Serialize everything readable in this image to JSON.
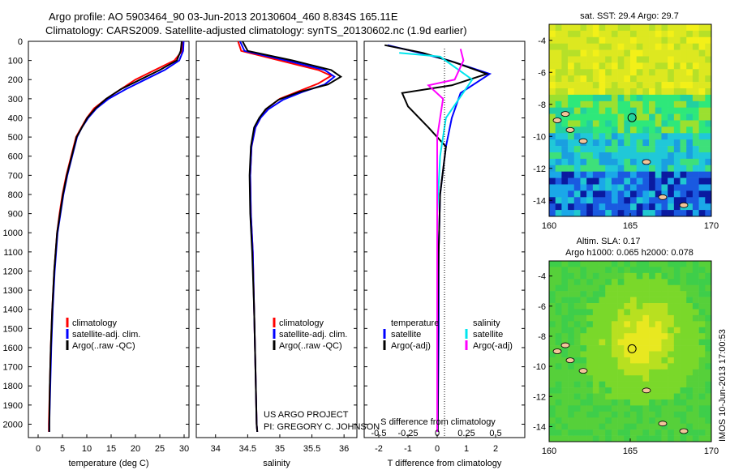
{
  "title_line1": "Argo profile: AO 5903464_90 03-Jun-2013 20130604_460 8.834S 165.11E",
  "title_line2": "Climatology: CARS2009. Satellite-adjusted climatology: synTS_20130602.nc (1.9d earlier)",
  "colors": {
    "climatology": "#ff0000",
    "satellite": "#0000ff",
    "argo": "#000000",
    "sat_salinity": "#00e5ee",
    "argo_salinity_adj": "#ff00ff"
  },
  "depth_ticks": [
    0,
    100,
    200,
    300,
    400,
    500,
    600,
    700,
    800,
    900,
    1000,
    1100,
    1200,
    1300,
    1400,
    1500,
    1600,
    1700,
    1800,
    1900,
    2000
  ],
  "chart_data": [
    {
      "type": "line",
      "xlabel": "temperature (deg C)",
      "xlim": [
        -2,
        31
      ],
      "ylim": [
        2070,
        0
      ],
      "xticks": [
        0,
        5,
        10,
        15,
        20,
        25,
        30
      ],
      "legend": [
        "climatology",
        "satellite-adj. clim.",
        "Argo(..raw -QC)"
      ],
      "series": [
        {
          "name": "climatology",
          "color": "#ff0000",
          "points": [
            [
              29.8,
              0
            ],
            [
              29.6,
              50
            ],
            [
              28,
              100
            ],
            [
              24,
              150
            ],
            [
              20,
              200
            ],
            [
              17,
              250
            ],
            [
              14,
              300
            ],
            [
              11.5,
              350
            ],
            [
              10,
              400
            ],
            [
              8.9,
              450
            ],
            [
              7.8,
              500
            ],
            [
              6.8,
              600
            ],
            [
              5.8,
              700
            ],
            [
              5,
              800
            ],
            [
              4.4,
              900
            ],
            [
              3.9,
              1000
            ],
            [
              3.3,
              1200
            ],
            [
              2.9,
              1400
            ],
            [
              2.6,
              1600
            ],
            [
              2.4,
              1800
            ],
            [
              2.2,
              2000
            ],
            [
              2.2,
              2040
            ]
          ]
        },
        {
          "name": "satellite-adj. clim.",
          "color": "#0000ff",
          "points": [
            [
              29.9,
              0
            ],
            [
              29.8,
              50
            ],
            [
              29,
              100
            ],
            [
              26,
              150
            ],
            [
              22,
              200
            ],
            [
              18,
              250
            ],
            [
              14.5,
              300
            ],
            [
              12,
              350
            ],
            [
              10.3,
              400
            ],
            [
              9,
              450
            ],
            [
              8,
              500
            ],
            [
              7,
              600
            ],
            [
              6,
              700
            ],
            [
              5.2,
              800
            ],
            [
              4.6,
              900
            ],
            [
              4,
              1000
            ],
            [
              3.4,
              1200
            ],
            [
              3,
              1400
            ],
            [
              2.7,
              1600
            ],
            [
              2.5,
              1800
            ],
            [
              2.3,
              2000
            ],
            [
              2.3,
              2040
            ]
          ]
        },
        {
          "name": "Argo(..raw -QC)",
          "color": "#000000",
          "points": [
            [
              29.5,
              0
            ],
            [
              29.3,
              50
            ],
            [
              28.5,
              100
            ],
            [
              25,
              150
            ],
            [
              21,
              200
            ],
            [
              17,
              250
            ],
            [
              14,
              300
            ],
            [
              11.8,
              350
            ],
            [
              10.1,
              400
            ],
            [
              9,
              450
            ],
            [
              7.9,
              500
            ],
            [
              6.9,
              600
            ],
            [
              5.9,
              700
            ],
            [
              5.1,
              800
            ],
            [
              4.5,
              900
            ],
            [
              3.9,
              1000
            ],
            [
              3.3,
              1200
            ],
            [
              2.9,
              1400
            ],
            [
              2.6,
              1600
            ],
            [
              2.4,
              1800
            ],
            [
              2.3,
              2000
            ],
            [
              2.3,
              2040
            ]
          ]
        }
      ]
    },
    {
      "type": "line",
      "xlabel": "salinity",
      "xlim": [
        33.7,
        36.2
      ],
      "ylim": [
        2070,
        0
      ],
      "xticks": [
        34,
        34.5,
        35,
        35.5,
        36
      ],
      "legend": [
        "climatology",
        "satellite-adj. clim.",
        "Argo(..raw -QC)"
      ],
      "annotation_line1": "US ARGO PROJECT",
      "annotation_line2": "PI: GREGORY C. JOHNSON",
      "series": [
        {
          "name": "climatology",
          "color": "#ff0000",
          "points": [
            [
              34.35,
              0
            ],
            [
              34.4,
              50
            ],
            [
              35,
              100
            ],
            [
              35.6,
              150
            ],
            [
              35.8,
              180
            ],
            [
              35.6,
              220
            ],
            [
              35.3,
              260
            ],
            [
              35,
              300
            ],
            [
              34.8,
              350
            ],
            [
              34.7,
              400
            ],
            [
              34.62,
              450
            ],
            [
              34.56,
              550
            ],
            [
              34.54,
              700
            ],
            [
              34.55,
              900
            ],
            [
              34.58,
              1100
            ],
            [
              34.6,
              1400
            ],
            [
              34.62,
              1700
            ],
            [
              34.64,
              2000
            ],
            [
              34.65,
              2040
            ]
          ]
        },
        {
          "name": "satellite-adj. clim.",
          "color": "#0000ff",
          "points": [
            [
              34.38,
              0
            ],
            [
              34.45,
              50
            ],
            [
              35.1,
              100
            ],
            [
              35.7,
              150
            ],
            [
              35.85,
              185
            ],
            [
              35.7,
              225
            ],
            [
              35.35,
              265
            ],
            [
              35.05,
              305
            ],
            [
              34.82,
              355
            ],
            [
              34.7,
              400
            ],
            [
              34.62,
              450
            ],
            [
              34.56,
              550
            ],
            [
              34.54,
              700
            ],
            [
              34.55,
              900
            ],
            [
              34.58,
              1100
            ],
            [
              34.6,
              1400
            ],
            [
              34.62,
              1700
            ],
            [
              34.64,
              2000
            ],
            [
              34.65,
              2040
            ]
          ]
        },
        {
          "name": "Argo(..raw -QC)",
          "color": "#000000",
          "points": [
            [
              34.42,
              0
            ],
            [
              34.5,
              50
            ],
            [
              35.2,
              100
            ],
            [
              35.8,
              150
            ],
            [
              35.95,
              185
            ],
            [
              35.75,
              225
            ],
            [
              35.3,
              265
            ],
            [
              34.98,
              305
            ],
            [
              34.78,
              355
            ],
            [
              34.68,
              400
            ],
            [
              34.6,
              450
            ],
            [
              34.55,
              550
            ],
            [
              34.53,
              700
            ],
            [
              34.54,
              900
            ],
            [
              34.57,
              1100
            ],
            [
              34.6,
              1400
            ],
            [
              34.62,
              1700
            ],
            [
              34.64,
              2000
            ],
            [
              34.65,
              2040
            ]
          ]
        }
      ]
    },
    {
      "type": "line",
      "xlabel": "T difference from climatology",
      "xlabel_top": "S difference from climatology",
      "xlim": [
        -2.5,
        3
      ],
      "ylim": [
        2070,
        0
      ],
      "xticks": [
        -2,
        -1,
        0,
        1,
        2
      ],
      "s_ticks": [
        "-0.5",
        "-0.25",
        "0",
        "0.25",
        "0.5"
      ],
      "s_ticks_at_x": [
        -2,
        -1,
        0,
        1,
        2
      ],
      "legend_title_t": "temperature",
      "legend_title_s": "salinity",
      "legend_t": [
        "satellite",
        "Argo(-adj)"
      ],
      "legend_s": [
        "satellite",
        "Argo(-adj)"
      ],
      "series": [
        {
          "name": "T satellite",
          "color": "#0000ff",
          "points": [
            [
              -1.7,
              20
            ],
            [
              -0.6,
              60
            ],
            [
              0.4,
              100
            ],
            [
              1.8,
              170
            ],
            [
              0.8,
              270
            ],
            [
              0.5,
              400
            ],
            [
              0.3,
              550
            ],
            [
              0.1,
              800
            ],
            [
              0.05,
              1100
            ],
            [
              0.05,
              1500
            ],
            [
              0.02,
              2040
            ]
          ]
        },
        {
          "name": "T Argo(-adj)",
          "color": "#000000",
          "points": [
            [
              -1.8,
              20
            ],
            [
              -0.5,
              60
            ],
            [
              0.6,
              110
            ],
            [
              1.7,
              170
            ],
            [
              0.5,
              230
            ],
            [
              -1.2,
              270
            ],
            [
              -1.0,
              340
            ],
            [
              -0.3,
              450
            ],
            [
              0.3,
              550
            ],
            [
              0.1,
              800
            ],
            [
              0.05,
              1100
            ],
            [
              0.02,
              1500
            ],
            [
              0.02,
              2040
            ]
          ]
        },
        {
          "name": "S satellite",
          "color": "#00e5ee",
          "points": [
            [
              -1.3,
              60
            ],
            [
              0.1,
              80
            ],
            [
              1.2,
              200
            ],
            [
              0.3,
              400
            ],
            [
              0.1,
              600
            ],
            [
              0,
              900
            ],
            [
              0,
              1400
            ],
            [
              0,
              2040
            ]
          ]
        },
        {
          "name": "S Argo(-adj)",
          "color": "#ff00ff",
          "points": [
            [
              0.8,
              40
            ],
            [
              0.9,
              100
            ],
            [
              0.6,
              200
            ],
            [
              -0.3,
              230
            ],
            [
              0.2,
              300
            ],
            [
              0,
              500
            ],
            [
              0,
              2040
            ]
          ]
        }
      ]
    },
    {
      "type": "heatmap",
      "title": "sat. SST: 29.4 Argo: 29.7",
      "xticks": [
        160,
        165,
        170
      ],
      "yticks": [
        -4,
        -6,
        -8,
        -10,
        -12,
        -14
      ],
      "xlim": [
        160,
        170
      ],
      "ylim": [
        -15,
        -3
      ],
      "marker": [
        165.11,
        -8.834
      ]
    },
    {
      "type": "heatmap",
      "title_line1": "Altim. SLA: 0.17",
      "title_line2": "Argo h1000: 0.065 h2000: 0.078",
      "xticks": [
        160,
        165,
        170
      ],
      "yticks": [
        -4,
        -6,
        -8,
        -10,
        -12,
        -14
      ],
      "xlim": [
        160,
        170
      ],
      "ylim": [
        -15,
        -3
      ],
      "marker": [
        165.11,
        -8.834
      ]
    }
  ],
  "side_credit": "IMOS 10-Jun-2013 17:00:53"
}
